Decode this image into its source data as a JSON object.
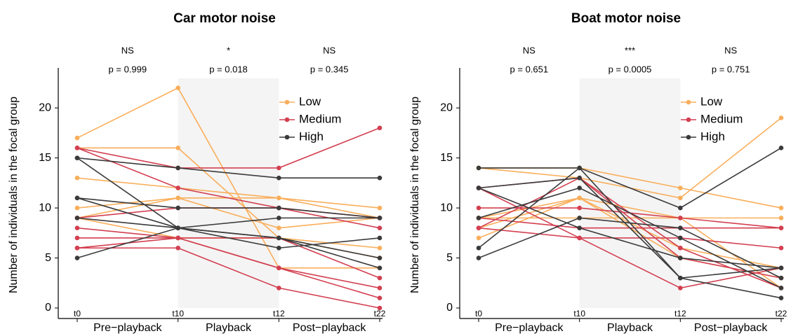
{
  "chart_data": [
    {
      "type": "line",
      "title": "Car motor noise",
      "ylabel": "Number of individuals in the focal group",
      "categories": [
        "t0",
        "t10",
        "t12",
        "t22"
      ],
      "phases": [
        "Pre−playback",
        "Playback",
        "Post−playback"
      ],
      "annotations": [
        {
          "sig": "NS",
          "p": "p = 0.999"
        },
        {
          "sig": "*",
          "p": "p = 0.018"
        },
        {
          "sig": "NS",
          "p": "p = 0.345"
        }
      ],
      "ylim": [
        0,
        24
      ],
      "yticks": [
        0,
        5,
        10,
        15,
        20
      ],
      "shade": [
        1,
        2
      ],
      "legend": "top-right",
      "series": [
        {
          "name": "Low",
          "color": "#f9ae5b",
          "lines": [
            [
              17,
              22,
              4,
              4
            ],
            [
              16,
              16,
              7,
              5
            ],
            [
              13,
              12,
              11,
              9
            ],
            [
              10,
              11,
              11,
              10
            ],
            [
              9,
              11,
              8,
              9
            ],
            [
              9,
              7,
              7,
              6
            ]
          ]
        },
        {
          "name": "Medium",
          "color": "#d33f50",
          "lines": [
            [
              16,
              14,
              14,
              18
            ],
            [
              16,
              12,
              10,
              8
            ],
            [
              9,
              10,
              10,
              9
            ],
            [
              8,
              7,
              4,
              2
            ],
            [
              7,
              7,
              4,
              1
            ],
            [
              6,
              6,
              2,
              0
            ],
            [
              6,
              7,
              7,
              3
            ]
          ]
        },
        {
          "name": "High",
          "color": "#3a3a3a",
          "lines": [
            [
              15,
              14,
              13,
              13
            ],
            [
              11,
              10,
              10,
              9
            ],
            [
              11,
              8,
              7,
              4
            ],
            [
              9,
              8,
              6,
              7
            ],
            [
              5,
              8,
              9,
              9
            ],
            [
              15,
              8,
              7,
              5
            ]
          ]
        }
      ]
    },
    {
      "type": "line",
      "title": "Boat motor noise",
      "ylabel": "Number of individuals in the focal group",
      "categories": [
        "t0",
        "t10",
        "t12",
        "t22"
      ],
      "phases": [
        "Pre−playback",
        "Playback",
        "Post−playback"
      ],
      "annotations": [
        {
          "sig": "NS",
          "p": "p = 0.651"
        },
        {
          "sig": "***",
          "p": "p = 0.0005"
        },
        {
          "sig": "NS",
          "p": "p = 0.751"
        }
      ],
      "ylim": [
        0,
        24
      ],
      "yticks": [
        0,
        5,
        10,
        15,
        20
      ],
      "shade": [
        1,
        2
      ],
      "legend": "top-right",
      "series": [
        {
          "name": "Low",
          "color": "#f9ae5b",
          "lines": [
            [
              14,
              14,
              12,
              10
            ],
            [
              14,
              13,
              11,
              19
            ],
            [
              7,
              11,
              6,
              4
            ],
            [
              9,
              11,
              5,
              3
            ],
            [
              9,
              9,
              9,
              2
            ],
            [
              8,
              11,
              9,
              9
            ]
          ]
        },
        {
          "name": "Medium",
          "color": "#d33f50",
          "lines": [
            [
              12,
              13,
              5,
              3
            ],
            [
              10,
              10,
              9,
              8
            ],
            [
              9,
              8,
              8,
              8
            ],
            [
              8,
              7,
              7,
              6
            ],
            [
              12,
              7,
              2,
              4
            ],
            [
              8,
              13,
              6,
              2
            ]
          ]
        },
        {
          "name": "High",
          "color": "#3a3a3a",
          "lines": [
            [
              14,
              14,
              10,
              16
            ],
            [
              12,
              13,
              3,
              4
            ],
            [
              9,
              12,
              7,
              2
            ],
            [
              6,
              14,
              3,
              1
            ],
            [
              5,
              9,
              8,
              3
            ],
            [
              12,
              8,
              5,
              4
            ]
          ]
        }
      ]
    }
  ]
}
